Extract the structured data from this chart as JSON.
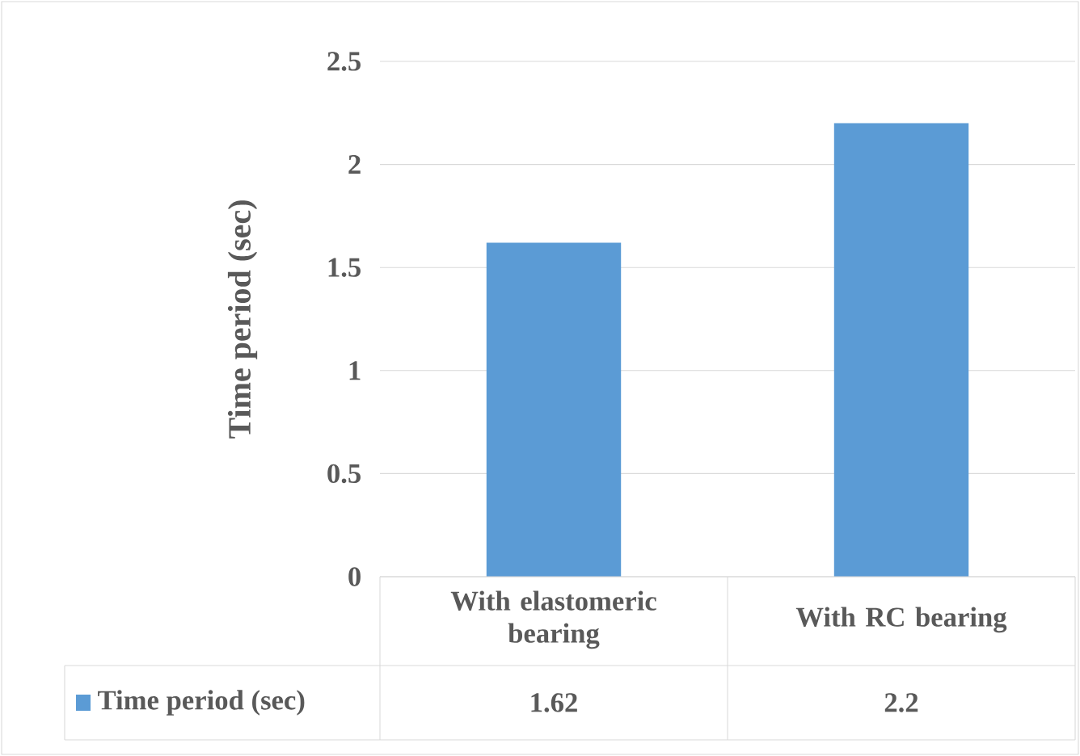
{
  "chart_data": {
    "type": "bar",
    "ylabel": "Time period (sec)",
    "categories": [
      "With elastomeric bearing",
      "With RC bearing"
    ],
    "series": [
      {
        "name": "Time period (sec)",
        "color": "#5b9bd5",
        "values": [
          1.62,
          2.2
        ]
      }
    ],
    "ylim": [
      0,
      2.5
    ],
    "yticks": [
      0,
      0.5,
      1,
      1.5,
      2,
      2.5
    ],
    "grid": "y",
    "legend": "bottom",
    "data_labels": true
  }
}
